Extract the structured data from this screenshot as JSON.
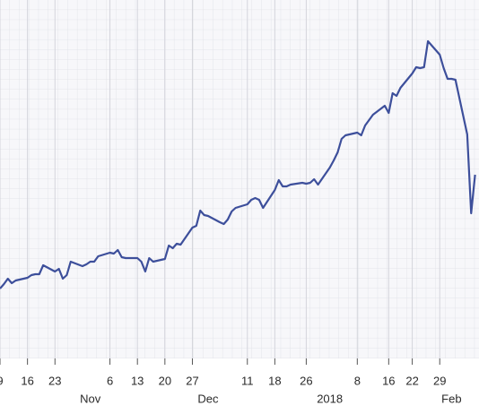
{
  "chart_data": {
    "type": "line",
    "x": [
      "2017-10-09",
      "2017-10-10",
      "2017-10-11",
      "2017-10-12",
      "2017-10-13",
      "2017-10-16",
      "2017-10-17",
      "2017-10-18",
      "2017-10-19",
      "2017-10-20",
      "2017-10-23",
      "2017-10-24",
      "2017-10-25",
      "2017-10-26",
      "2017-10-27",
      "2017-10-30",
      "2017-10-31",
      "2017-11-01",
      "2017-11-02",
      "2017-11-03",
      "2017-11-06",
      "2017-11-07",
      "2017-11-08",
      "2017-11-09",
      "2017-11-10",
      "2017-11-13",
      "2017-11-14",
      "2017-11-15",
      "2017-11-16",
      "2017-11-17",
      "2017-11-20",
      "2017-11-21",
      "2017-11-22",
      "2017-11-23",
      "2017-11-24",
      "2017-11-27",
      "2017-11-28",
      "2017-11-29",
      "2017-11-30",
      "2017-12-01",
      "2017-12-04",
      "2017-12-05",
      "2017-12-06",
      "2017-12-07",
      "2017-12-08",
      "2017-12-11",
      "2017-12-12",
      "2017-12-13",
      "2017-12-14",
      "2017-12-15",
      "2017-12-18",
      "2017-12-19",
      "2017-12-20",
      "2017-12-21",
      "2017-12-22",
      "2017-12-25",
      "2017-12-26",
      "2017-12-27",
      "2017-12-28",
      "2017-12-29",
      "2018-01-01",
      "2018-01-02",
      "2018-01-03",
      "2018-01-04",
      "2018-01-05",
      "2018-01-08",
      "2018-01-09",
      "2018-01-10",
      "2018-01-11",
      "2018-01-12",
      "2018-01-15",
      "2018-01-16",
      "2018-01-17",
      "2018-01-18",
      "2018-01-19",
      "2018-01-22",
      "2018-01-23",
      "2018-01-24",
      "2018-01-25",
      "2018-01-26",
      "2018-01-29",
      "2018-01-30",
      "2018-01-31",
      "2018-02-01",
      "2018-02-02",
      "2018-02-05",
      "2018-02-06",
      "2018-02-07"
    ],
    "values": [
      78,
      83,
      89,
      84,
      87,
      90,
      93,
      94,
      94,
      104,
      97,
      100,
      89,
      93,
      108,
      103,
      105,
      108,
      108,
      114,
      118,
      117,
      121,
      113,
      112,
      112,
      108,
      97,
      112,
      108,
      111,
      126,
      123,
      128,
      127,
      146,
      148,
      165,
      160,
      159,
      152,
      150,
      155,
      164,
      168,
      172,
      177,
      179,
      177,
      168,
      188,
      199,
      192,
      192,
      194,
      196,
      195,
      196,
      200,
      194,
      213,
      221,
      230,
      245,
      249,
      252,
      249,
      260,
      266,
      272,
      282,
      274,
      296,
      293,
      302,
      318,
      325,
      324,
      325,
      354,
      339,
      324,
      312,
      312,
      311,
      250,
      162,
      205
    ],
    "color": "#3d4f9b",
    "xlim": [
      "2017-10-09",
      "2018-02-08"
    ],
    "ylim": [
      0,
      400
    ],
    "xticks": [
      {
        "value": "2017-10-09",
        "label": "9"
      },
      {
        "value": "2017-10-16",
        "label": "16"
      },
      {
        "value": "2017-10-23",
        "label": "23"
      },
      {
        "value": "2017-11-06",
        "label": "6"
      },
      {
        "value": "2017-11-13",
        "label": "13"
      },
      {
        "value": "2017-11-20",
        "label": "20"
      },
      {
        "value": "2017-11-27",
        "label": "27"
      },
      {
        "value": "2017-12-11",
        "label": "11"
      },
      {
        "value": "2017-12-18",
        "label": "18"
      },
      {
        "value": "2017-12-26",
        "label": "26"
      },
      {
        "value": "2018-01-08",
        "label": "8"
      },
      {
        "value": "2018-01-16",
        "label": "16"
      },
      {
        "value": "2018-01-22",
        "label": "22"
      },
      {
        "value": "2018-01-29",
        "label": "29"
      }
    ],
    "xticks_period": [
      {
        "value": "2017-11-01",
        "label": "Nov"
      },
      {
        "value": "2017-12-01",
        "label": "Dec"
      },
      {
        "value": "2018-01-01",
        "label": "2018"
      },
      {
        "value": "2018-02-01",
        "label": "Feb"
      }
    ],
    "grid": true
  }
}
